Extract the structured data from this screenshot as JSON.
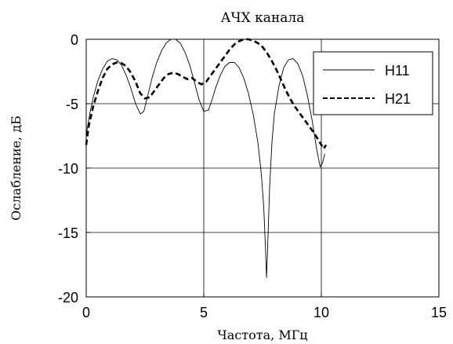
{
  "chart_data": {
    "type": "line",
    "title": "АЧХ канала",
    "xlabel": "Частота, МГц",
    "ylabel": "Ослабление, дБ",
    "xlim": [
      0,
      15
    ],
    "ylim": [
      -20,
      0
    ],
    "xticks": [
      0,
      5,
      10,
      15
    ],
    "yticks": [
      0,
      -5,
      -10,
      -15,
      -20
    ],
    "xtick_labels": [
      "0",
      "5",
      "10",
      "15"
    ],
    "ytick_labels": [
      "0",
      "-5",
      "-10",
      "-15",
      "-20"
    ],
    "grid": true,
    "legend_position": "top-right",
    "series": [
      {
        "name": "H11",
        "style": "solid-thin",
        "x": [
          0.0,
          0.15,
          0.3,
          0.5,
          0.7,
          0.9,
          1.1,
          1.3,
          1.5,
          1.7,
          1.9,
          2.1,
          2.3,
          2.45,
          2.6,
          2.8,
          3.0,
          3.2,
          3.4,
          3.6,
          3.8,
          4.0,
          4.2,
          4.4,
          4.6,
          4.8,
          5.0,
          5.2,
          5.35,
          5.5,
          5.7,
          5.9,
          6.1,
          6.3,
          6.5,
          6.7,
          6.9,
          7.1,
          7.3,
          7.45,
          7.55,
          7.62,
          7.67,
          7.72,
          7.8,
          7.9,
          8.0,
          8.2,
          8.4,
          8.6,
          8.8,
          9.0,
          9.2,
          9.4,
          9.6,
          9.8,
          9.95,
          10.05,
          10.15
        ],
        "y": [
          -7.4,
          -5.8,
          -4.5,
          -3.2,
          -2.3,
          -1.7,
          -1.5,
          -1.6,
          -2.0,
          -2.8,
          -3.8,
          -5.0,
          -5.8,
          -5.6,
          -4.5,
          -3.0,
          -1.8,
          -0.9,
          -0.3,
          0.0,
          0.0,
          -0.3,
          -1.0,
          -2.0,
          -3.3,
          -4.7,
          -5.6,
          -5.5,
          -4.7,
          -3.8,
          -2.8,
          -2.1,
          -1.8,
          -1.8,
          -2.2,
          -3.0,
          -4.2,
          -5.8,
          -8.0,
          -10.5,
          -13.0,
          -16.0,
          -18.5,
          -16.0,
          -11.5,
          -8.0,
          -5.8,
          -3.6,
          -2.2,
          -1.6,
          -1.5,
          -1.9,
          -2.8,
          -4.3,
          -6.2,
          -8.5,
          -9.9,
          -9.6,
          -8.9
        ]
      },
      {
        "name": "H21",
        "style": "dashed-thick",
        "x": [
          0.0,
          0.1,
          0.3,
          0.5,
          0.7,
          0.9,
          1.1,
          1.3,
          1.5,
          1.7,
          1.9,
          2.1,
          2.3,
          2.5,
          2.7,
          2.9,
          3.1,
          3.3,
          3.5,
          3.7,
          3.9,
          4.1,
          4.3,
          4.5,
          4.7,
          4.9,
          5.1,
          5.3,
          5.5,
          5.7,
          5.9,
          6.1,
          6.3,
          6.5,
          6.7,
          6.9,
          7.1,
          7.3,
          7.5,
          7.7,
          7.9,
          8.1,
          8.3,
          8.5,
          8.7,
          8.9,
          9.1,
          9.3,
          9.5,
          9.7,
          9.9,
          10.1,
          10.2
        ],
        "y": [
          -8.2,
          -6.8,
          -5.2,
          -4.0,
          -3.0,
          -2.3,
          -1.95,
          -1.8,
          -1.85,
          -2.1,
          -2.6,
          -3.3,
          -4.2,
          -4.6,
          -4.5,
          -4.0,
          -3.5,
          -3.0,
          -2.7,
          -2.6,
          -2.7,
          -2.9,
          -3.1,
          -3.0,
          -3.3,
          -3.5,
          -3.3,
          -2.8,
          -2.3,
          -1.8,
          -1.3,
          -0.8,
          -0.4,
          -0.15,
          0.0,
          0.0,
          -0.1,
          -0.3,
          -0.6,
          -1.1,
          -1.7,
          -2.4,
          -3.2,
          -4.0,
          -4.7,
          -5.3,
          -5.8,
          -6.3,
          -6.8,
          -7.3,
          -7.9,
          -8.5,
          -8.2
        ]
      }
    ]
  }
}
